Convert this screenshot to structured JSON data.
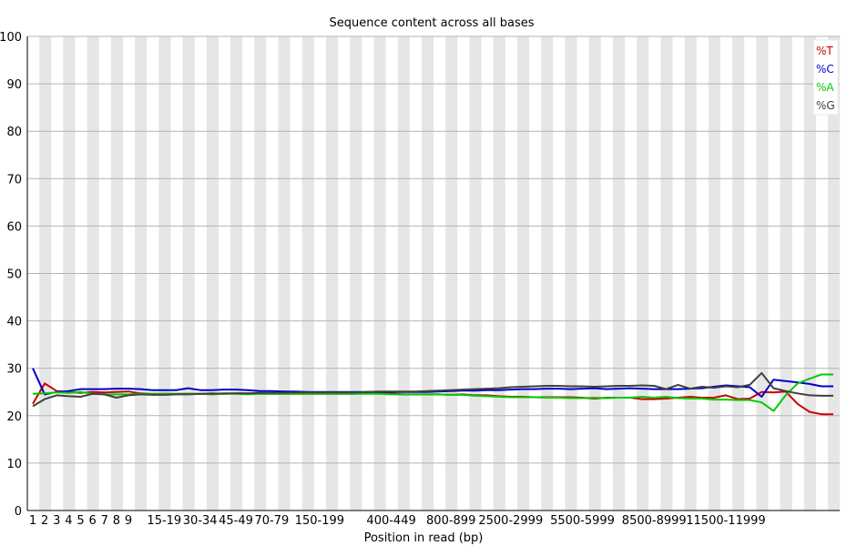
{
  "chart_data": {
    "type": "line",
    "title": "Sequence content across all bases",
    "xlabel": "Position in read (bp)",
    "ylabel": "",
    "ylim": [
      0,
      100
    ],
    "yticks": [
      0,
      10,
      20,
      30,
      40,
      50,
      60,
      70,
      80,
      90,
      100
    ],
    "grid": true,
    "legend_position": "top-right",
    "num_positions": 68,
    "x_tick_labels": [
      "1",
      "2",
      "3",
      "4",
      "5",
      "6",
      "7",
      "8",
      "9",
      "15-19",
      "30-34",
      "45-49",
      "70-79",
      "150-199",
      "400-449",
      "800-899",
      "2500-2999",
      "5500-5999",
      "8500-8999",
      "11500-11999"
    ],
    "x_tick_indices": [
      0,
      1,
      2,
      3,
      4,
      5,
      6,
      7,
      8,
      11,
      14,
      17,
      20,
      24,
      30,
      35,
      40,
      46,
      52,
      58
    ],
    "series": [
      {
        "name": "%T",
        "color": "#cc0000",
        "values": [
          22.5,
          26.8,
          25.2,
          25.0,
          24.8,
          25.0,
          24.9,
          25.0,
          25.1,
          24.7,
          24.6,
          24.6,
          24.6,
          24.6,
          24.6,
          24.7,
          24.6,
          24.7,
          24.7,
          24.6,
          24.6,
          24.6,
          24.6,
          24.6,
          24.6,
          24.6,
          24.6,
          24.6,
          24.8,
          24.7,
          24.7,
          24.5,
          24.5,
          24.5,
          24.5,
          24.4,
          24.5,
          24.3,
          24.3,
          24.1,
          24.0,
          24.0,
          23.9,
          23.9,
          23.9,
          23.9,
          23.8,
          23.6,
          23.8,
          23.8,
          23.8,
          23.5,
          23.5,
          23.6,
          23.8,
          24.0,
          23.8,
          23.8,
          24.3,
          23.5,
          23.6,
          25.0,
          24.9,
          25.1,
          22.5,
          20.8,
          20.3,
          20.3
        ]
      },
      {
        "name": "%C",
        "color": "#0000cc",
        "values": [
          30.0,
          24.5,
          25.0,
          25.2,
          25.6,
          25.6,
          25.6,
          25.7,
          25.7,
          25.6,
          25.4,
          25.4,
          25.4,
          25.8,
          25.4,
          25.4,
          25.5,
          25.5,
          25.4,
          25.2,
          25.2,
          25.1,
          25.1,
          25.0,
          25.0,
          25.0,
          25.0,
          25.0,
          25.0,
          25.0,
          25.0,
          25.0,
          25.0,
          25.0,
          25.1,
          25.2,
          25.3,
          25.3,
          25.4,
          25.4,
          25.5,
          25.6,
          25.6,
          25.7,
          25.7,
          25.6,
          25.7,
          25.8,
          25.6,
          25.7,
          25.8,
          25.7,
          25.6,
          25.6,
          25.6,
          25.7,
          25.8,
          26.1,
          26.4,
          26.2,
          26.0,
          24.0,
          27.6,
          27.3,
          27.0,
          26.7,
          26.2,
          26.2
        ]
      },
      {
        "name": "%A",
        "color": "#00cc00",
        "values": [
          24.6,
          24.7,
          24.9,
          24.8,
          25.0,
          24.6,
          24.5,
          24.5,
          24.5,
          24.6,
          24.6,
          24.6,
          24.6,
          24.6,
          24.6,
          24.5,
          24.6,
          24.6,
          24.5,
          24.6,
          24.6,
          24.6,
          24.6,
          24.6,
          24.6,
          24.6,
          24.6,
          24.6,
          24.6,
          24.6,
          24.5,
          24.5,
          24.5,
          24.5,
          24.5,
          24.4,
          24.4,
          24.2,
          24.1,
          24.0,
          23.9,
          23.9,
          23.9,
          23.8,
          23.8,
          23.7,
          23.7,
          23.8,
          23.7,
          23.8,
          23.8,
          24.0,
          23.8,
          24.0,
          23.7,
          23.6,
          23.6,
          23.4,
          23.4,
          23.3,
          23.3,
          22.8,
          21.0,
          24.3,
          26.8,
          27.8,
          28.7,
          28.7
        ]
      },
      {
        "name": "%G",
        "color": "#404040",
        "values": [
          22.0,
          23.5,
          24.3,
          24.1,
          24.0,
          24.6,
          24.5,
          23.8,
          24.3,
          24.5,
          24.4,
          24.4,
          24.5,
          24.5,
          24.6,
          24.6,
          24.7,
          24.7,
          24.7,
          24.8,
          24.8,
          24.8,
          24.9,
          24.9,
          24.9,
          24.9,
          24.9,
          24.9,
          25.0,
          25.1,
          25.1,
          25.1,
          25.1,
          25.2,
          25.3,
          25.4,
          25.5,
          25.6,
          25.7,
          25.8,
          26.0,
          26.1,
          26.2,
          26.3,
          26.3,
          26.2,
          26.2,
          26.1,
          26.2,
          26.3,
          26.3,
          26.4,
          26.3,
          25.6,
          26.5,
          25.7,
          26.1,
          25.9,
          26.2,
          26.0,
          26.5,
          29.0,
          25.8,
          25.2,
          24.7,
          24.3,
          24.2,
          24.2
        ]
      }
    ]
  }
}
